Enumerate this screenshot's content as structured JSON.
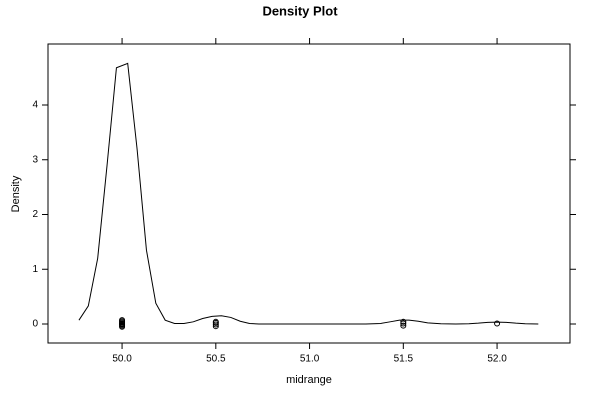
{
  "chart_data": {
    "type": "density",
    "title": "Density Plot",
    "xlabel": "midrange",
    "ylabel": "Density",
    "xlim": [
      49.605,
      52.389
    ],
    "ylim": [
      -0.347,
      5.114
    ],
    "xticks": [
      {
        "value": 50,
        "label": "50.0"
      },
      {
        "value": 50.5,
        "label": "50.5"
      },
      {
        "value": 51,
        "label": "51.0"
      },
      {
        "value": 51.5,
        "label": "51.5"
      },
      {
        "value": 52,
        "label": "52.0"
      }
    ],
    "yticks": [
      0,
      1,
      2,
      3,
      4
    ],
    "color": "#000000",
    "density": {
      "x": [
        49.77,
        49.82,
        49.87,
        49.92,
        49.97,
        50.03,
        50.08,
        50.13,
        50.18,
        50.23,
        50.28,
        50.33,
        50.38,
        50.43,
        50.48,
        50.53,
        50.58,
        50.63,
        50.68,
        50.73,
        51.3,
        51.38,
        51.43,
        51.48,
        51.53,
        51.58,
        51.63,
        51.7,
        51.78,
        51.85,
        51.9,
        51.95,
        52.0,
        52.05,
        52.1,
        52.15,
        52.22
      ],
      "y": [
        0.07,
        0.33,
        1.2,
        2.9,
        4.68,
        4.76,
        3.2,
        1.35,
        0.38,
        0.07,
        0.01,
        0.01,
        0.04,
        0.1,
        0.14,
        0.15,
        0.12,
        0.05,
        0.01,
        0,
        0,
        0.01,
        0.04,
        0.07,
        0.07,
        0.05,
        0.02,
        0.005,
        0,
        0.005,
        0.015,
        0.03,
        0.035,
        0.03,
        0.015,
        0.005,
        0
      ]
    },
    "points": {
      "x": [
        50,
        50,
        50,
        50,
        50,
        50,
        50,
        50,
        50.5,
        50.5,
        50.5,
        50.5,
        51.5,
        51.5,
        51.5,
        52
      ],
      "y": [
        -0.05,
        -0.03,
        -0.01,
        0.01,
        0.03,
        0.05,
        0.07,
        0.0,
        -0.04,
        -0.01,
        0.02,
        0.04,
        -0.03,
        0.01,
        0.04,
        0.01
      ]
    }
  }
}
